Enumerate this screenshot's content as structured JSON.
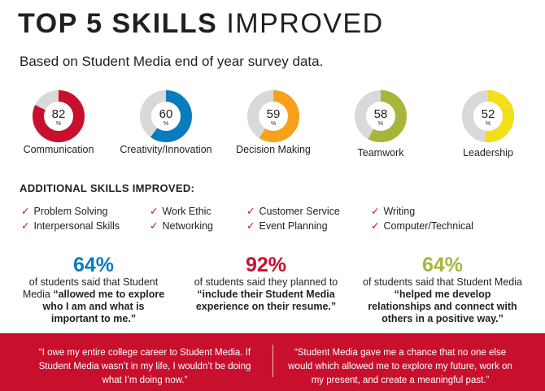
{
  "title": {
    "bold": "TOP 5 SKILLS",
    "light": "IMPROVED"
  },
  "subtitle": "Based on Student Media end of year survey data.",
  "chart_data": {
    "type": "pie",
    "unit": "%",
    "items": [
      {
        "label": "Communication",
        "value": 82,
        "color": "#c8102e"
      },
      {
        "label": "Creativity/Innovation",
        "value": 60,
        "color": "#0a7bbd"
      },
      {
        "label": "Decision Making",
        "value": 59,
        "color": "#f7a11a"
      },
      {
        "label": "Teamwork",
        "value": 58,
        "color": "#a9b539"
      },
      {
        "label": "Leadership",
        "value": 52,
        "color": "#f2df1a"
      }
    ],
    "remainder_color": "#d9d9d9"
  },
  "additional": {
    "title": "ADDITIONAL SKILLS IMPROVED:",
    "check": "✓",
    "skills": [
      "Problem Solving",
      "Work Ethic",
      "Customer Service",
      "Writing",
      "Interpersonal Skills",
      "Networking",
      "Event Planning",
      "Computer/Technical"
    ]
  },
  "stats": [
    {
      "pct": "64%",
      "color": "#0a7bbd",
      "pre": "of students said that Student Media ",
      "bold": "“allowed me to explore who I am and what is important to me.”",
      "post": ""
    },
    {
      "pct": "92%",
      "color": "#c8102e",
      "pre": "of students said they planned to ",
      "bold": "“include their Student Media experience on their resume.”",
      "post": ""
    },
    {
      "pct": "64%",
      "color": "#a9b539",
      "pre": "of students said that Student Media ",
      "bold": "“helped me develop relationships and connect with others in a positive way.”",
      "post": ""
    }
  ],
  "quotes": [
    "“I owe my entire college career to Student Media. If Student Media wasn’t in my life, I wouldn’t be doing what I’m doing now.”",
    "“Student Media gave me a chance that no one else would which allowed me to explore my future, work on my present, and create a meaningful past.”"
  ]
}
